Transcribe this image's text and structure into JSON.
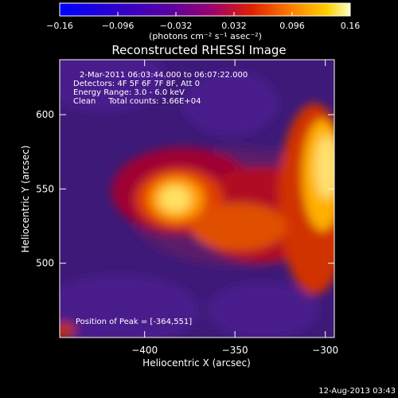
{
  "chart_data": {
    "type": "heatmap",
    "title": "Reconstructed RHESSI Image",
    "xlabel": "Heliocentric X (arcsec)",
    "ylabel": "Heliocentric Y (arcsec)",
    "xlim": [
      -447,
      -295
    ],
    "ylim": [
      450,
      637
    ],
    "x_ticks": [
      -400,
      -350,
      -300
    ],
    "x_tick_labels": [
      "−400",
      "−350",
      "−300"
    ],
    "y_ticks": [
      500,
      550,
      600
    ],
    "y_tick_labels": [
      "500",
      "550",
      "600"
    ],
    "colorbar": {
      "range": [
        -0.16,
        0.16
      ],
      "ticks": [
        -0.16,
        -0.096,
        -0.032,
        0.032,
        0.096,
        0.16
      ],
      "tick_labels": [
        "−0.16",
        "−0.096",
        "−0.032",
        "0.032",
        "0.096",
        "0.16"
      ],
      "unit_label": "(photons cm⁻² s⁻¹ asec⁻²)"
    },
    "info_lines": [
      "2-Mar-2011 06:03:44.000 to 06:07:22.000",
      "Detectors: 4F 5F 6F 7F 8F, Att 0",
      "Energy Range: 3.0 - 6.0 keV",
      "Clean     Total counts: 3.66E+04"
    ],
    "peak_label": "Position of Peak = [-364,551]",
    "peak": [
      -364,
      551
    ],
    "footer_date": "12-Aug-2013 03:43"
  }
}
